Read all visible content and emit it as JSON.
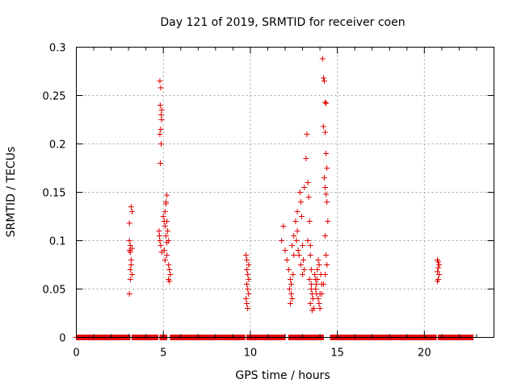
{
  "chart_data": {
    "type": "scatter",
    "title": "Day 121 of 2019, SRMTID for receiver coen",
    "xlabel": "GPS time / hours",
    "ylabel": "SRMTID / TECUs",
    "xlim": [
      0,
      24
    ],
    "ylim": [
      0,
      0.3
    ],
    "xticks": [
      0,
      5,
      10,
      15,
      20
    ],
    "xtick_labels": [
      "0",
      "5",
      "10",
      "15",
      "20"
    ],
    "yticks": [
      0,
      0.05,
      0.1,
      0.15,
      0.2,
      0.25,
      0.3
    ],
    "ytick_labels": [
      "0",
      "0.05",
      "0.1",
      "0.15",
      "0.2",
      "0.25",
      "0.3"
    ],
    "grid": true,
    "marker": "+",
    "color": "#e00000",
    "zero_segments": [
      [
        0.0,
        3.1
      ],
      [
        3.2,
        4.7
      ],
      [
        4.8,
        5.2
      ],
      [
        5.4,
        9.7
      ],
      [
        9.8,
        12.0
      ],
      [
        12.2,
        14.2
      ],
      [
        14.6,
        20.7
      ],
      [
        20.8,
        22.8
      ]
    ],
    "series": [
      {
        "name": "SRMTID",
        "x": [
          3.05,
          3.1,
          3.15,
          3.05,
          3.1,
          3.2,
          3.15,
          3.05,
          3.1,
          3.2,
          3.15,
          3.1,
          3.05,
          3.2,
          4.8,
          4.85,
          4.82,
          4.88,
          4.9,
          4.85,
          4.8,
          4.87,
          4.83,
          4.9,
          4.75,
          4.8,
          4.85,
          4.9,
          4.78,
          5.0,
          5.05,
          5.1,
          5.15,
          5.2,
          5.1,
          5.15,
          5.2,
          5.05,
          5.1,
          5.2,
          5.3,
          5.35,
          5.4,
          5.3,
          5.35,
          5.25,
          5.2,
          5.15,
          5.3,
          9.75,
          9.8,
          9.85,
          9.9,
          9.8,
          9.85,
          9.9,
          9.75,
          9.8,
          9.85,
          9.9,
          9.8,
          11.8,
          11.9,
          12.0,
          12.1,
          12.2,
          12.3,
          12.25,
          12.35,
          12.4,
          12.3,
          12.35,
          12.45,
          12.5,
          12.4,
          12.5,
          12.6,
          12.7,
          12.65,
          12.75,
          12.8,
          12.7,
          12.85,
          12.9,
          12.95,
          13.0,
          12.9,
          13.05,
          13.1,
          13.0,
          13.1,
          13.2,
          13.25,
          13.3,
          13.35,
          13.4,
          13.3,
          13.45,
          13.5,
          13.4,
          13.5,
          13.55,
          13.6,
          13.45,
          13.5,
          13.7,
          13.75,
          13.8,
          13.85,
          13.9,
          13.75,
          13.8,
          13.9,
          13.95,
          14.0,
          13.85,
          13.95,
          14.05,
          14.1,
          14.0,
          14.15,
          14.2,
          14.25,
          14.3,
          14.35,
          14.2,
          14.3,
          14.35,
          14.4,
          14.25,
          14.3,
          14.35,
          14.4,
          14.45,
          14.3,
          13.45,
          14.35,
          14.4,
          14.3,
          14.2,
          14.1,
          13.65,
          13.55,
          20.75,
          20.8,
          20.85,
          20.8,
          20.75,
          20.85,
          20.8,
          20.75
        ],
        "y": [
          0.045,
          0.07,
          0.08,
          0.09,
          0.095,
          0.13,
          0.135,
          0.118,
          0.06,
          0.065,
          0.075,
          0.088,
          0.1,
          0.092,
          0.265,
          0.258,
          0.24,
          0.23,
          0.225,
          0.215,
          0.21,
          0.2,
          0.18,
          0.235,
          0.11,
          0.1,
          0.095,
          0.088,
          0.105,
          0.125,
          0.12,
          0.13,
          0.138,
          0.147,
          0.115,
          0.105,
          0.098,
          0.09,
          0.08,
          0.085,
          0.075,
          0.07,
          0.065,
          0.06,
          0.058,
          0.11,
          0.12,
          0.14,
          0.1,
          0.085,
          0.08,
          0.065,
          0.06,
          0.055,
          0.05,
          0.045,
          0.04,
          0.035,
          0.03,
          0.075,
          0.07,
          0.1,
          0.115,
          0.09,
          0.08,
          0.07,
          0.06,
          0.05,
          0.045,
          0.04,
          0.035,
          0.055,
          0.065,
          0.085,
          0.095,
          0.105,
          0.12,
          0.11,
          0.1,
          0.09,
          0.085,
          0.13,
          0.15,
          0.14,
          0.125,
          0.095,
          0.075,
          0.08,
          0.07,
          0.065,
          0.155,
          0.185,
          0.21,
          0.16,
          0.145,
          0.12,
          0.1,
          0.085,
          0.07,
          0.06,
          0.05,
          0.045,
          0.04,
          0.035,
          0.055,
          0.065,
          0.06,
          0.055,
          0.07,
          0.08,
          0.05,
          0.045,
          0.04,
          0.035,
          0.03,
          0.06,
          0.075,
          0.065,
          0.055,
          0.045,
          0.288,
          0.268,
          0.265,
          0.243,
          0.242,
          0.218,
          0.212,
          0.19,
          0.175,
          0.165,
          0.155,
          0.148,
          0.14,
          0.12,
          0.105,
          0.095,
          0.085,
          0.075,
          0.065,
          0.055,
          0.045,
          0.03,
          0.028,
          0.08,
          0.078,
          0.075,
          0.072,
          0.068,
          0.065,
          0.06,
          0.058
        ]
      }
    ]
  }
}
